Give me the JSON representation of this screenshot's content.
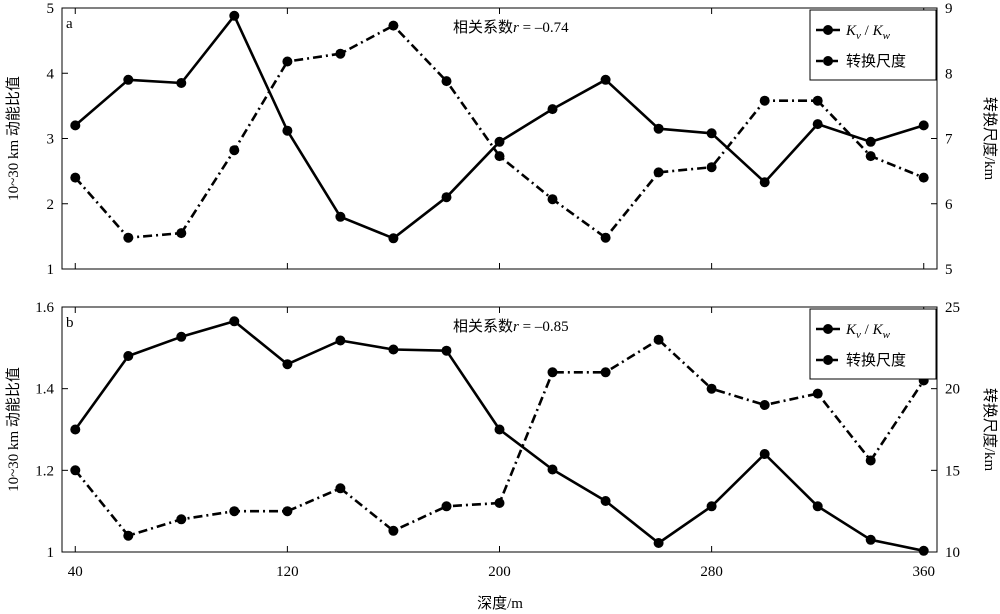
{
  "xlabel": "深度/m",
  "chart_data": [
    {
      "type": "line",
      "panel_label": "a",
      "annotation": "相关系数r = –0.74",
      "x": [
        40,
        60,
        80,
        100,
        120,
        140,
        160,
        180,
        200,
        220,
        240,
        260,
        280,
        300,
        320,
        340,
        360
      ],
      "xlim": [
        35,
        365
      ],
      "xticks": [
        40,
        120,
        200,
        280,
        360
      ],
      "ylabel_left": "10~30 km 动能比值",
      "ylabel_right": "转换尺度/km",
      "ylim_left": [
        1,
        5
      ],
      "yticks_left": [
        1,
        2,
        3,
        4,
        5
      ],
      "ylim_right": [
        5,
        9
      ],
      "yticks_right": [
        5,
        6,
        7,
        8,
        9
      ],
      "series": [
        {
          "name": "Kv / Kw",
          "axis": "left",
          "style": "solid",
          "values": [
            3.2,
            3.9,
            3.85,
            4.88,
            3.12,
            1.8,
            1.47,
            2.1,
            2.95,
            3.45,
            3.9,
            3.15,
            3.08,
            2.33,
            3.22,
            2.95,
            3.2
          ]
        },
        {
          "name": "转换尺度",
          "axis": "right",
          "style": "dashdot",
          "values": [
            6.4,
            5.48,
            5.55,
            6.82,
            8.18,
            8.3,
            8.73,
            7.88,
            6.73,
            6.07,
            5.48,
            6.48,
            6.56,
            7.58,
            7.58,
            6.73,
            6.4
          ]
        }
      ],
      "legend_position": "top-right"
    },
    {
      "type": "line",
      "panel_label": "b",
      "annotation": "相关系数r = –0.85",
      "x": [
        40,
        60,
        80,
        100,
        120,
        140,
        160,
        180,
        200,
        220,
        240,
        260,
        280,
        300,
        320,
        340,
        360
      ],
      "xlim": [
        35,
        365
      ],
      "xticks": [
        40,
        120,
        200,
        280,
        360
      ],
      "ylabel_left": "10~30 km 动能比值",
      "ylabel_right": "转换尺度/km",
      "ylim_left": [
        1,
        1.6
      ],
      "yticks_left": [
        1,
        1.2,
        1.4,
        1.6
      ],
      "ylim_right": [
        10,
        25
      ],
      "yticks_right": [
        10,
        15,
        20,
        25
      ],
      "series": [
        {
          "name": "Kv / Kw",
          "axis": "left",
          "style": "solid",
          "values": [
            1.3,
            1.48,
            1.527,
            1.565,
            1.46,
            1.518,
            1.496,
            1.493,
            1.3,
            1.202,
            1.125,
            1.022,
            1.112,
            1.24,
            1.112,
            1.03,
            1.003
          ]
        },
        {
          "name": "转换尺度",
          "axis": "right",
          "style": "dashdot",
          "values": [
            15.0,
            11.0,
            12.0,
            12.5,
            12.5,
            13.9,
            11.3,
            12.8,
            13.0,
            21.0,
            21.0,
            23.0,
            20.0,
            19.0,
            19.7,
            15.6,
            20.5
          ]
        }
      ],
      "legend_position": "top-right"
    }
  ]
}
